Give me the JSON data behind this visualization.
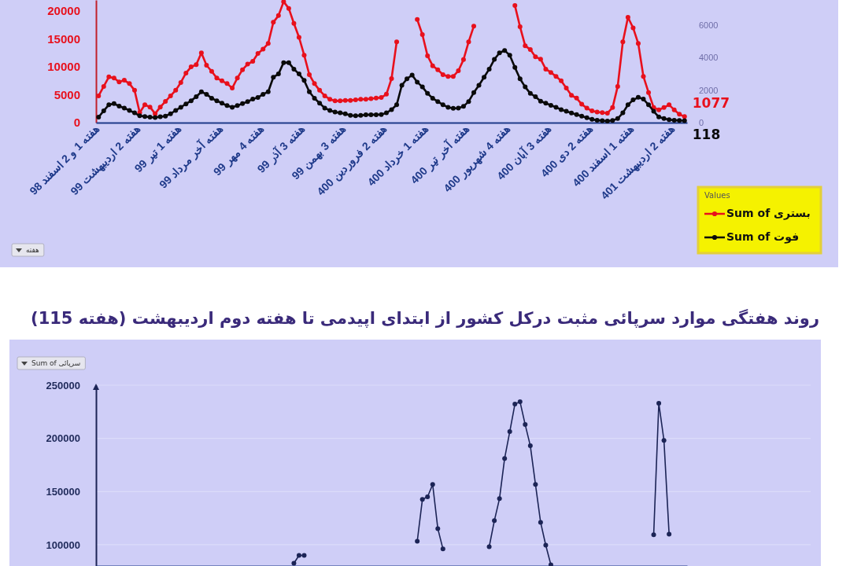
{
  "chart_data": [
    {
      "type": "line",
      "categories": [
        "هفته 1 و 2 اسفند 98",
        null,
        null,
        null,
        null,
        null,
        null,
        null,
        "هفته 2 اردیبهشت 99",
        null,
        null,
        null,
        null,
        null,
        null,
        null,
        "هفته 1 تیر 99",
        null,
        null,
        null,
        null,
        null,
        null,
        null,
        "هفته آخر مرداد 99",
        null,
        null,
        null,
        null,
        null,
        null,
        null,
        "هفته 4 مهر 99",
        null,
        null,
        null,
        null,
        null,
        null,
        null,
        "هفته 3 آذر 99",
        null,
        null,
        null,
        null,
        null,
        null,
        null,
        "هفته 3 بهمن 99",
        null,
        null,
        null,
        null,
        null,
        null,
        null,
        "هفته 2 فروردین 400",
        null,
        null,
        null,
        null,
        null,
        null,
        null,
        "هفته 1 خرداد 400",
        null,
        null,
        null,
        null,
        null,
        null,
        null,
        "هفته آخر تیر 400",
        null,
        null,
        null,
        null,
        null,
        null,
        null,
        "هفته 4 شهریور 400",
        null,
        null,
        null,
        null,
        null,
        null,
        null,
        "هفته 3 آبان 400",
        null,
        null,
        null,
        null,
        null,
        null,
        null,
        "هفته 2 دی 400",
        null,
        null,
        null,
        null,
        null,
        null,
        null,
        "هفته 1 اسفند 400",
        null,
        null,
        null,
        null,
        null,
        null,
        null,
        "هفته 2 اردیبهشت 401",
        null,
        null
      ],
      "series": [
        {
          "name": "Sum of بستری",
          "color": "#e8101c",
          "axis": "y",
          "values": [
            4800,
            6500,
            8200,
            8000,
            7300,
            7600,
            7000,
            5800,
            1800,
            3200,
            2800,
            1600,
            2800,
            3800,
            4800,
            5800,
            7200,
            8900,
            10000,
            10400,
            12500,
            10300,
            9200,
            8000,
            7500,
            7000,
            6200,
            8000,
            9500,
            10500,
            11000,
            12400,
            13200,
            14200,
            18000,
            19200,
            21700,
            20500,
            17800,
            15300,
            12100,
            8600,
            7000,
            5800,
            4800,
            4200,
            3900,
            3900,
            4000,
            4000,
            4100,
            4200,
            4200,
            4300,
            4400,
            4500,
            5100,
            7900,
            14500,
            null,
            null,
            null,
            18500,
            15800,
            12000,
            10200,
            9500,
            8600,
            8300,
            8300,
            9300,
            11300,
            14500,
            17300,
            null,
            null,
            null,
            null,
            null,
            null,
            null,
            21000,
            17200,
            13800,
            13100,
            11800,
            11400,
            9600,
            9000,
            8300,
            7500,
            6200,
            4900,
            4400,
            3300,
            2600,
            2100,
            1900,
            1800,
            1700,
            2700,
            6500,
            14500,
            18900,
            17000,
            14200,
            8300,
            5400,
            2700,
            2300,
            2700,
            3200,
            2300,
            1500,
            1077
          ],
          "value_labels": [
            null,
            null,
            null,
            null,
            null,
            null,
            null,
            null,
            null,
            null,
            null,
            null,
            null,
            null,
            null,
            null,
            null,
            null,
            null,
            null,
            null,
            null,
            null,
            null,
            null,
            null,
            null,
            null,
            null,
            null,
            null,
            null,
            null,
            null,
            null,
            null,
            null,
            null,
            null,
            null,
            null,
            null,
            null,
            null,
            null,
            null,
            null,
            null,
            null,
            null,
            null,
            null,
            null,
            null,
            null,
            null,
            null,
            null,
            null,
            null,
            null,
            null,
            null,
            null,
            null,
            null,
            null,
            null,
            null,
            null,
            null,
            null,
            null,
            null,
            null,
            null,
            null,
            null,
            null,
            null,
            null,
            null,
            null,
            null,
            null,
            null,
            null,
            null,
            null,
            null,
            null,
            null,
            null,
            null,
            null,
            null,
            null,
            null,
            null,
            null,
            null,
            null,
            null,
            null,
            null,
            null,
            null,
            null,
            null,
            null,
            null,
            null,
            null,
            null,
            "1077"
          ]
        },
        {
          "name": "Sum of فوت",
          "color": "#0a0a0a",
          "axis": "y2",
          "values": [
            340,
            730,
            1100,
            1170,
            1020,
            900,
            750,
            600,
            420,
            380,
            340,
            320,
            360,
            400,
            550,
            750,
            950,
            1150,
            1350,
            1600,
            1900,
            1750,
            1500,
            1350,
            1200,
            1050,
            950,
            1050,
            1170,
            1300,
            1450,
            1550,
            1750,
            1900,
            2800,
            3000,
            3700,
            3700,
            3300,
            3000,
            2600,
            1900,
            1500,
            1200,
            900,
            750,
            650,
            600,
            550,
            450,
            420,
            450,
            480,
            490,
            490,
            500,
            600,
            800,
            1100,
            2300,
            2700,
            2930,
            2500,
            2200,
            1800,
            1500,
            1300,
            1100,
            950,
            880,
            900,
            1000,
            1300,
            1850,
            2300,
            2800,
            3300,
            3900,
            4300,
            4450,
            4150,
            3400,
            2700,
            2200,
            1800,
            1600,
            1320,
            1200,
            1070,
            950,
            800,
            700,
            590,
            500,
            400,
            300,
            200,
            150,
            120,
            100,
            130,
            250,
            600,
            1100,
            1400,
            1560,
            1450,
            1100,
            700,
            350,
            250,
            180,
            150,
            130,
            118
          ],
          "value_labels": [
            null,
            null,
            null,
            null,
            null,
            null,
            null,
            null,
            null,
            null,
            null,
            null,
            null,
            null,
            null,
            null,
            null,
            null,
            null,
            null,
            null,
            null,
            null,
            null,
            null,
            null,
            null,
            null,
            null,
            null,
            null,
            null,
            null,
            null,
            null,
            null,
            null,
            null,
            null,
            null,
            null,
            null,
            null,
            null,
            null,
            null,
            null,
            null,
            null,
            null,
            null,
            null,
            null,
            null,
            null,
            null,
            null,
            null,
            null,
            null,
            null,
            null,
            null,
            null,
            null,
            null,
            null,
            null,
            null,
            null,
            null,
            null,
            null,
            null,
            null,
            null,
            null,
            null,
            null,
            null,
            null,
            null,
            null,
            null,
            null,
            null,
            null,
            null,
            null,
            null,
            null,
            null,
            null,
            null,
            null,
            null,
            null,
            null,
            null,
            null,
            null,
            null,
            null,
            null,
            null,
            null,
            null,
            null,
            null,
            null,
            null,
            null,
            null,
            null,
            "118"
          ]
        }
      ],
      "ylim": [
        0,
        22000
      ],
      "yticks": [
        0,
        5000,
        10000,
        15000,
        20000
      ],
      "y2lim": [
        0,
        7560
      ],
      "y2ticks": [
        0,
        2000,
        4000,
        6000
      ],
      "legend": "bottom right",
      "legend_title": "Values",
      "marker": "circle",
      "annotations": [
        "هفته"
      ]
    },
    {
      "type": "line",
      "title": "روند هفتگی موارد سرپائی مثبت درکل کشور از ابتدای اپیدمی تا هفته دوم اردیبهشت (هفته 115)",
      "categories": [
        null,
        null,
        null,
        null,
        null,
        null,
        null,
        null,
        null,
        null,
        null,
        null,
        null,
        null,
        null,
        null,
        null,
        null,
        null,
        null,
        null,
        null,
        null,
        null,
        null,
        null,
        null,
        null,
        null,
        null,
        null,
        null,
        null,
        null,
        null,
        null,
        null,
        null,
        null,
        null,
        null,
        null,
        null,
        null,
        null,
        null,
        null,
        null,
        null,
        null,
        null,
        null,
        null,
        null,
        null,
        null,
        null,
        null,
        null,
        null,
        null,
        null,
        null,
        null,
        null,
        null,
        null,
        null,
        null,
        null,
        null,
        null,
        null,
        null,
        null,
        null,
        null,
        null,
        null,
        null,
        null,
        null,
        null,
        null,
        null,
        null,
        null,
        null,
        null,
        null,
        null,
        null,
        null,
        null,
        null,
        null,
        null,
        null,
        null,
        null,
        null,
        null,
        null,
        null,
        null,
        null,
        null,
        null,
        null,
        null,
        null,
        null,
        null,
        null,
        null
      ],
      "series": [
        {
          "color": "#1c2456",
          "values": [
            null,
            null,
            null,
            null,
            null,
            null,
            null,
            null,
            null,
            null,
            null,
            null,
            null,
            null,
            null,
            null,
            null,
            null,
            null,
            null,
            null,
            null,
            null,
            null,
            null,
            null,
            null,
            null,
            null,
            null,
            null,
            null,
            null,
            null,
            null,
            null,
            null,
            null,
            82600,
            90000,
            90000,
            null,
            null,
            null,
            null,
            null,
            null,
            null,
            null,
            null,
            null,
            null,
            null,
            null,
            null,
            null,
            null,
            null,
            null,
            null,
            null,
            null,
            103300,
            142600,
            145000,
            156700,
            115200,
            96000,
            null,
            null,
            null,
            null,
            null,
            null,
            null,
            null,
            98100,
            122600,
            143300,
            181100,
            206300,
            232200,
            234400,
            213000,
            193000,
            156700,
            121100,
            99600,
            81100,
            null,
            null,
            null,
            null,
            null,
            null,
            null,
            null,
            null,
            null,
            null,
            null,
            null,
            null,
            null,
            null,
            null,
            null,
            null,
            109300,
            233000,
            198100,
            110000,
            null,
            null,
            null
          ]
        }
      ],
      "ylim": [
        80000,
        250000
      ],
      "yticks": [
        100000,
        150000,
        200000,
        250000
      ],
      "grid": "y",
      "tick_labels": "y",
      "marker": "circle",
      "annotations": [
        "Sum of سرپائی"
      ]
    }
  ]
}
